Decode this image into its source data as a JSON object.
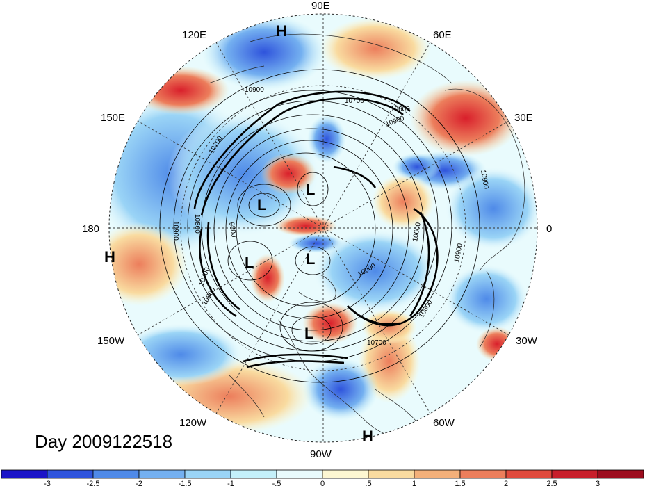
{
  "day_label": "Day 2009122518",
  "longitude_labels": [
    "90E",
    "60E",
    "30E",
    "0",
    "30W",
    "60W",
    "90W",
    "120W",
    "150W",
    "180",
    "150E",
    "120E"
  ],
  "pressure_centers": [
    {
      "mark": "H",
      "id": "h-top"
    },
    {
      "mark": "H",
      "id": "h-left"
    },
    {
      "mark": "H",
      "id": "h-bottom"
    },
    {
      "mark": "L",
      "id": "l-1"
    },
    {
      "mark": "L",
      "id": "l-2"
    },
    {
      "mark": "L",
      "id": "l-3"
    },
    {
      "mark": "L",
      "id": "l-4"
    },
    {
      "mark": "L",
      "id": "l-5"
    }
  ],
  "contour_labels": [
    "10700",
    "10600",
    "10900",
    "10700",
    "10900",
    "10900",
    "10800",
    "9800",
    "10900",
    "10700",
    "10800",
    "10000",
    "10600",
    "10900",
    "10800",
    "10700"
  ],
  "colorbar": {
    "ticks": [
      "-3",
      "-2.5",
      "-2",
      "-1.5",
      "-1",
      "-.5",
      "0",
      ".5",
      "1",
      "1.5",
      "2",
      "2.5",
      "3"
    ],
    "colors": [
      "#1b14c8",
      "#2f54dc",
      "#4f8ae8",
      "#74b0f0",
      "#9ad4f6",
      "#c4f0fa",
      "#e9fbfd",
      "#fdf7d2",
      "#f9dba0",
      "#f3b07a",
      "#ec7e5c",
      "#e04a3d",
      "#c81f2b",
      "#9c0c1e"
    ]
  }
}
